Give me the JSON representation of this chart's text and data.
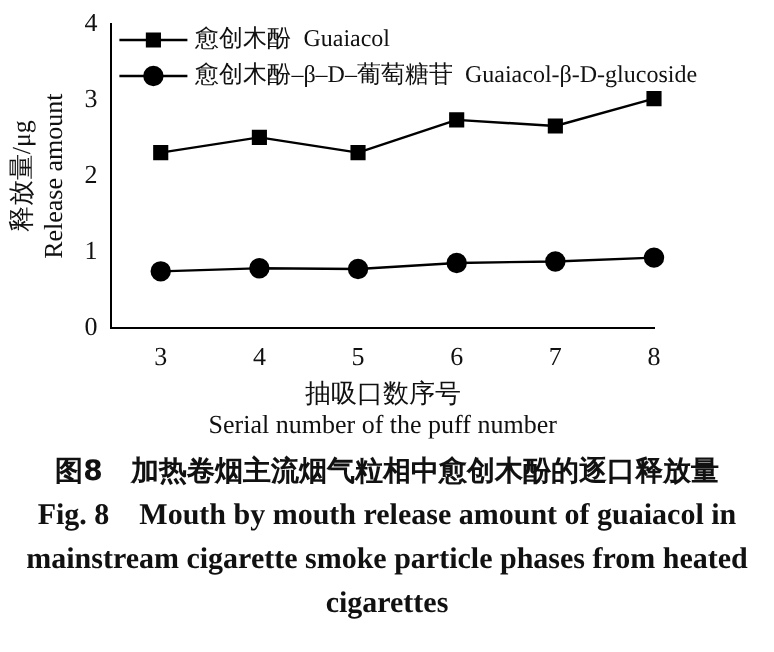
{
  "chart_data": {
    "type": "line",
    "xlabel": "抽吸口数序号\nSerial number of the puff number",
    "ylabel": "释放量/μg\nRelease amount",
    "x": [
      3,
      4,
      5,
      6,
      7,
      8
    ],
    "xlim": [
      2.5,
      8
    ],
    "xticks": [
      3,
      4,
      5,
      6,
      7,
      8
    ],
    "ylim": [
      0,
      4
    ],
    "yticks": [
      0,
      1,
      2,
      3,
      4
    ],
    "grid": false,
    "legend": "top left",
    "line_style": "solid",
    "series": [
      {
        "name": "愈创木酚  Guaiacol",
        "color": "#000000",
        "marker": "square",
        "values": [
          2.31,
          2.51,
          2.31,
          2.74,
          2.66,
          3.02
        ]
      },
      {
        "name": "愈创木酚–β–D–葡萄糖苷  Guaiacol-β-D-glucoside",
        "color": "#000000",
        "marker": "circle",
        "values": [
          0.75,
          0.79,
          0.78,
          0.86,
          0.88,
          0.93
        ]
      }
    ],
    "annotations": [
      "图8　加热卷烟主流烟气粒相中愈创木酚的逐口释放量",
      "Fig. 8　Mouth by mouth release amount of guaiacol in mainstream cigarette smoke particle phases from heated cigarettes"
    ]
  }
}
